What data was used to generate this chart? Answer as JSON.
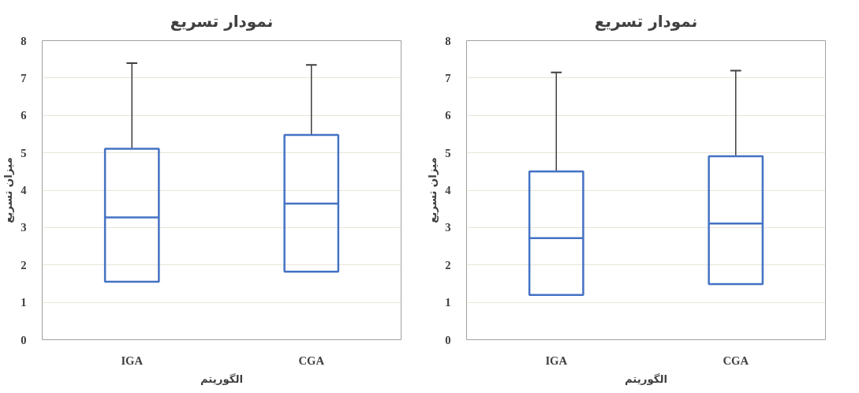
{
  "chart_data": [
    {
      "type": "box",
      "title": "نمودار تسریع",
      "xlabel": "الگوریتم",
      "ylabel": "میزان تسریع",
      "categories": [
        "IGA",
        "CGA"
      ],
      "ylim": [
        0,
        8
      ],
      "yticks": [
        0,
        1,
        2,
        3,
        4,
        5,
        6,
        7,
        8
      ],
      "grid": "y",
      "series": [
        {
          "color": "#4472c4",
          "boxes": [
            {
              "low": 1.55,
              "q1": 1.55,
              "median": 3.27,
              "q3": 5.11,
              "high": 7.4
            },
            {
              "low": 1.82,
              "q1": 1.82,
              "median": 3.64,
              "q3": 5.48,
              "high": 7.35
            }
          ]
        }
      ]
    },
    {
      "type": "box",
      "title": "نمودار تسریع",
      "xlabel": "الگوریتم",
      "ylabel": "میزان تسریع",
      "categories": [
        "IGA",
        "CGA"
      ],
      "ylim": [
        0,
        8
      ],
      "yticks": [
        0,
        1,
        2,
        3,
        4,
        5,
        6,
        7,
        8
      ],
      "grid": "y",
      "series": [
        {
          "color": "#4472c4",
          "boxes": [
            {
              "low": 1.2,
              "q1": 1.2,
              "median": 2.72,
              "q3": 4.5,
              "high": 7.15
            },
            {
              "low": 1.49,
              "q1": 1.49,
              "median": 3.11,
              "q3": 4.91,
              "high": 7.2
            }
          ]
        }
      ]
    }
  ]
}
